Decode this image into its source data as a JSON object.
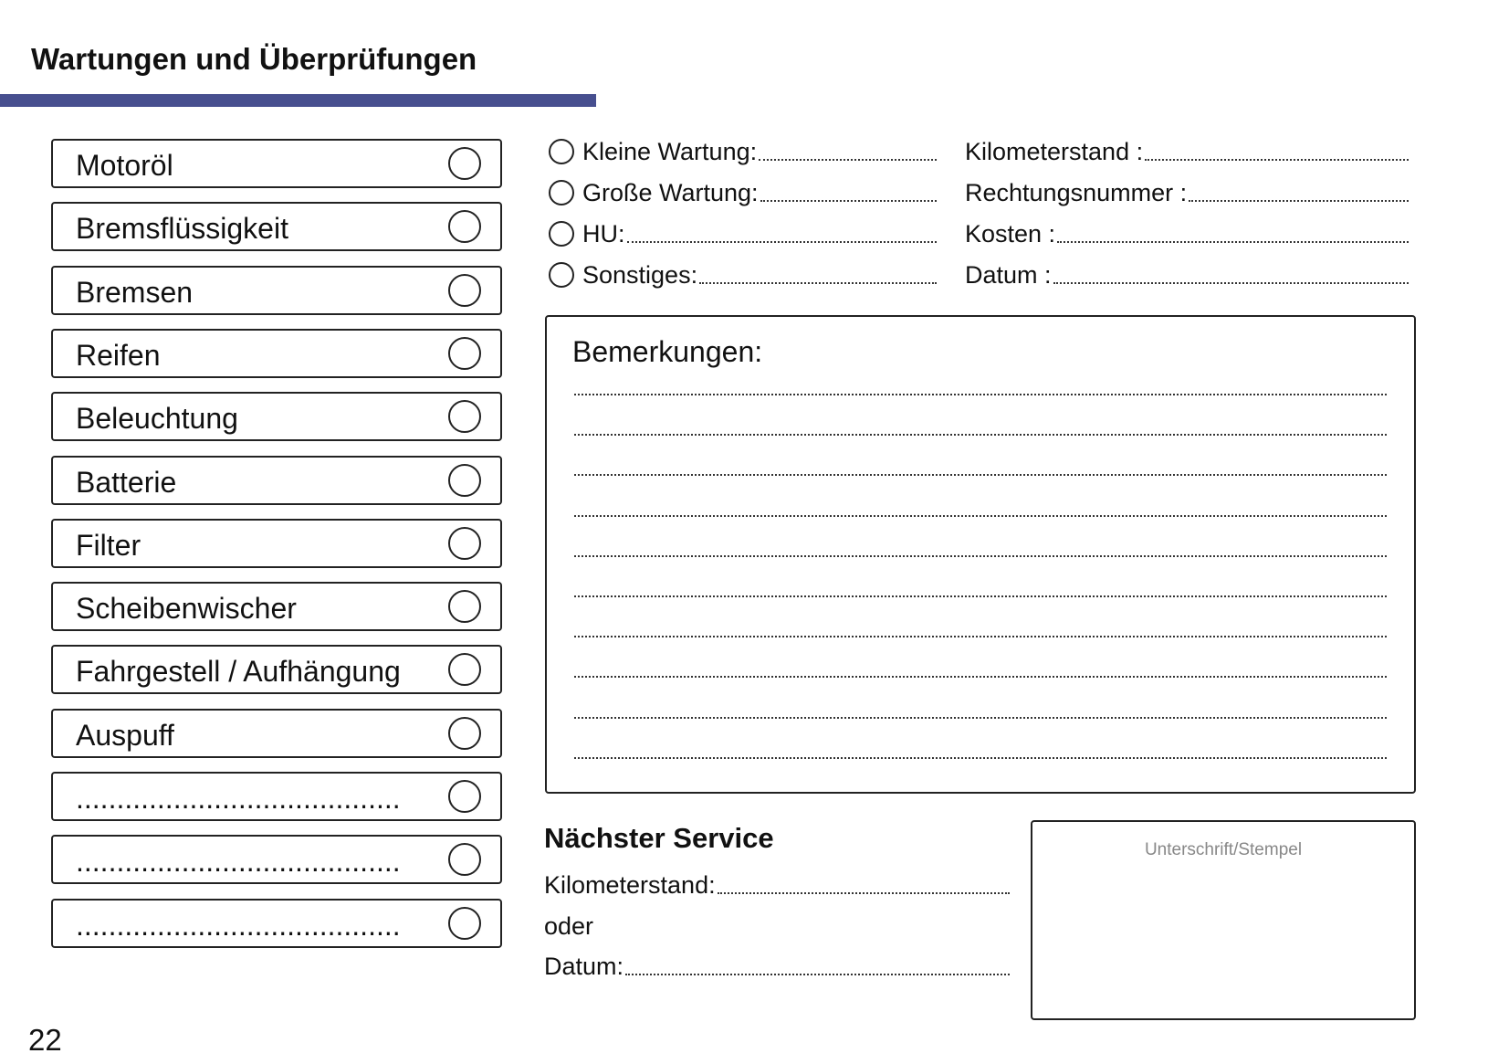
{
  "header": {
    "title": "Wartungen und Überprüfungen",
    "accent_color": "#474f8f"
  },
  "checklist": [
    "Motoröl",
    "Bremsflüssigkeit",
    "Bremsen",
    "Reifen",
    "Beleuchtung",
    "Batterie",
    "Filter",
    "Scheibenwischer",
    "Fahrgestell / Aufhängung",
    "Auspuff",
    "........................................",
    "........................................",
    "........................................"
  ],
  "service_types": [
    "Kleine Wartung:",
    "Große Wartung:",
    "HU:",
    "Sonstiges:"
  ],
  "service_fields": [
    "Kilometerstand :",
    "Rechtungsnummer :",
    "Kosten :",
    "Datum :"
  ],
  "remarks": {
    "title": "Bemerkungen:",
    "line_count": 10
  },
  "next_service": {
    "title": "Nächster Service",
    "mileage_label": "Kilometerstand:",
    "or_label": "oder",
    "date_label": "Datum:"
  },
  "stamp": {
    "label": "Unterschrift/Stempel"
  },
  "page_number": "22"
}
